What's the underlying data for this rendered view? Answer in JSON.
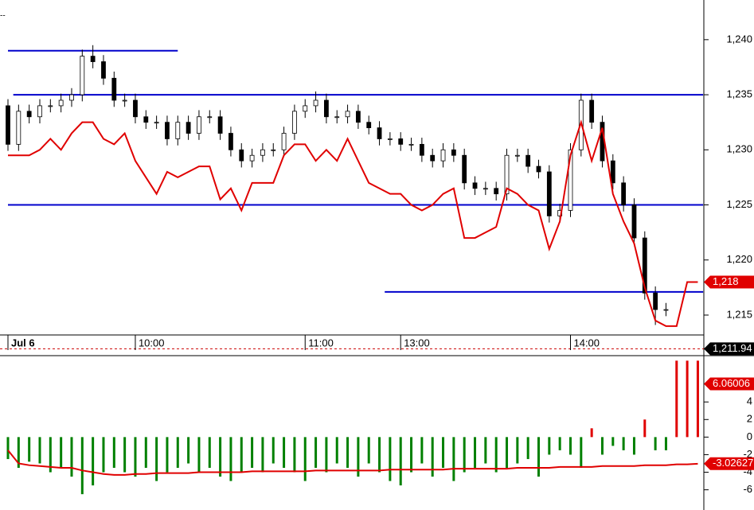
{
  "corner_mark": "--",
  "chart_data": [
    {
      "type": "candlestick",
      "categories": [
        "Jul 6",
        null,
        null,
        null,
        null,
        null,
        null,
        null,
        null,
        null,
        null,
        null,
        "10:00",
        null,
        null,
        null,
        null,
        null,
        null,
        null,
        null,
        null,
        null,
        null,
        null,
        null,
        null,
        null,
        "11:00",
        null,
        null,
        null,
        null,
        null,
        null,
        null,
        null,
        "13:00",
        null,
        null,
        null,
        null,
        null,
        null,
        null,
        null,
        null,
        null,
        null,
        null,
        null,
        null,
        null,
        "14:00",
        null,
        null,
        null,
        null,
        null,
        null,
        null,
        null,
        null,
        null,
        null,
        null
      ],
      "open": [
        1234,
        1230.5,
        1233.5,
        1233,
        1234,
        1234,
        1234.5,
        1235,
        1238.5,
        1238,
        1236.5,
        1234.5,
        1234.5,
        1233,
        1232.5,
        1232.5,
        1231,
        1232.5,
        1231.5,
        1233,
        1233,
        1231.5,
        1230,
        1229,
        1229.5,
        1230,
        1230,
        1231.5,
        1233.5,
        1234,
        1234.5,
        1233,
        1233,
        1233.5,
        1232.5,
        1232,
        1231,
        1231,
        1230.5,
        1230.5,
        1229.5,
        1229,
        1230,
        1229.5,
        1227,
        1226.5,
        1226.5,
        1226,
        1229.5,
        1229.5,
        1228.5,
        1228,
        1224,
        1224.5,
        1230,
        1234.5,
        1232.5,
        1229,
        1227,
        1225,
        1222,
        1217,
        1215.5,
        null,
        null,
        null
      ],
      "high": [
        1234.6,
        1234.1,
        1234.1,
        1234.6,
        1234.6,
        1235.1,
        1235.6,
        1239.1,
        1239.5,
        1238.6,
        1237.1,
        1235.1,
        1235.1,
        1233.6,
        1233.1,
        1233.1,
        1233.1,
        1233.1,
        1233.6,
        1233.6,
        1233.6,
        1232.1,
        1230.6,
        1230.1,
        1230.6,
        1230.6,
        1232.1,
        1234.1,
        1234.6,
        1235.3,
        1235.1,
        1233.6,
        1234.1,
        1234.1,
        1233.1,
        1232.6,
        1231.6,
        1231.6,
        1231.1,
        1231.1,
        1230.1,
        1230.6,
        1230.6,
        1230.1,
        1227.6,
        1227.1,
        1227.1,
        1230.1,
        1230.1,
        1230.1,
        1229.1,
        1228.6,
        1225.1,
        1230.6,
        1235.1,
        1235.1,
        1233.1,
        1229.6,
        1227.6,
        1225.6,
        1222.6,
        1217.6,
        1216.1,
        null,
        null,
        null
      ],
      "low": [
        1229.9,
        1229.9,
        1232.4,
        1232.4,
        1233.4,
        1233.4,
        1233.9,
        1234.4,
        1237.4,
        1235.9,
        1233.9,
        1233.9,
        1232.4,
        1231.9,
        1231.9,
        1230.4,
        1230.4,
        1230.9,
        1230.9,
        1232.4,
        1230.9,
        1229.4,
        1228.4,
        1228.4,
        1228.9,
        1229.4,
        1229.4,
        1230.9,
        1232.9,
        1233.4,
        1232.4,
        1232.4,
        1232.4,
        1231.9,
        1231.4,
        1230.4,
        1230.4,
        1229.9,
        1229.9,
        1228.9,
        1228.4,
        1228.4,
        1228.9,
        1226.4,
        1225.9,
        1225.9,
        1225.4,
        1225.4,
        1228.9,
        1227.9,
        1227.4,
        1223.4,
        1223.4,
        1223.9,
        1229.4,
        1231.9,
        1228.4,
        1226.4,
        1224.4,
        1221.4,
        1216.4,
        1214.1,
        1214.9,
        null,
        null,
        null
      ],
      "close": [
        1230.5,
        1233.5,
        1233,
        1234,
        1234,
        1234.5,
        1235,
        1238.5,
        1238,
        1236.5,
        1234.5,
        1234.5,
        1233,
        1232.5,
        1232.5,
        1231,
        1232.5,
        1231.5,
        1233,
        1233,
        1231.5,
        1230,
        1229,
        1229.5,
        1230,
        1230,
        1231.5,
        1233.5,
        1234,
        1234.5,
        1233,
        1233,
        1233.5,
        1232.5,
        1232,
        1231,
        1231,
        1230.5,
        1230.5,
        1229.5,
        1229,
        1230,
        1229.5,
        1227,
        1226.5,
        1226.5,
        1226,
        1229.5,
        1229.5,
        1228.5,
        1228,
        1224,
        1224.5,
        1230,
        1234.5,
        1232.5,
        1229,
        1227,
        1225,
        1222,
        1217,
        1215.5,
        1215.5,
        null,
        null,
        null
      ],
      "up_color": "#ffffff",
      "down_color": "#000000",
      "line": {
        "color": "#e00000",
        "values": [
          1229.5,
          1229.5,
          1229.5,
          1230,
          1231,
          1230,
          1231.5,
          1232.5,
          1232.5,
          1231,
          1230.5,
          1231.5,
          1229,
          1227.5,
          1226,
          1228,
          1227.5,
          1228,
          1228.5,
          1228.5,
          1225.5,
          1226.5,
          1224.5,
          1227,
          1227,
          1227,
          1229.5,
          1230.5,
          1230.5,
          1229,
          1230,
          1229,
          1231,
          1229,
          1227,
          1226.5,
          1226,
          1226,
          1225,
          1224.5,
          1225,
          1226,
          1226.5,
          1222,
          1222,
          1222.5,
          1223,
          1226.5,
          1226,
          1225,
          1224.5,
          1221,
          1223.5,
          1229.5,
          1232.5,
          1229,
          1232,
          1226,
          1223.5,
          1221.5,
          1217.5,
          1214.5,
          1214,
          1214,
          1218,
          1218
        ]
      },
      "levels": [
        {
          "value": 1239,
          "from": 0,
          "to": 16
        },
        {
          "value": 1235,
          "from": 0.5,
          "to": 65.5
        },
        {
          "value": 1225,
          "from": 0,
          "to": 65.5
        },
        {
          "value": 1217.1,
          "from": 35.5,
          "to": 65.5
        }
      ],
      "level_color": "#0000cc",
      "markers": [
        {
          "value": 1218,
          "label": "1,218",
          "color": "#e00000"
        },
        {
          "value": 1211.94,
          "label": "1,211.94",
          "color": "#000000"
        }
      ],
      "ylim": [
        1211.46,
        1243.6
      ],
      "yticks": [
        {
          "value": 1215,
          "label": "1,215"
        },
        {
          "value": 1220,
          "label": "1,220"
        },
        {
          "value": 1225,
          "label": "1,225"
        },
        {
          "value": 1230,
          "label": "1,230"
        },
        {
          "value": 1235,
          "label": "1,235"
        },
        {
          "value": 1240,
          "label": "1,240"
        }
      ]
    },
    {
      "type": "histogram-oscillator",
      "values": [
        -2.5,
        -3.5,
        -2.8,
        -3,
        -4,
        -3.5,
        -4.5,
        -6.5,
        -5.5,
        -4,
        -3.5,
        -4,
        -4.5,
        -3.5,
        -5,
        -4,
        -3.5,
        -3,
        -4,
        -3.5,
        -4.5,
        -5,
        -4,
        -3.5,
        -4,
        -3,
        -3.5,
        -4,
        -5,
        -3.5,
        -4,
        -3,
        -3.5,
        -4.5,
        -3,
        -4,
        -5,
        -5.5,
        -4,
        -3,
        -4.5,
        -3.5,
        -5,
        -4,
        -3.5,
        -3,
        -4,
        -3.5,
        -3,
        -2.5,
        -4.5,
        -2,
        -1.5,
        -2,
        -3.5,
        1,
        -2,
        -1,
        -1.5,
        -2,
        2,
        -1.5,
        -1.5,
        8.7,
        8.7,
        8.7
      ],
      "up_color": "#e00000",
      "down_color": "#008000",
      "line": {
        "color": "#e00000",
        "values": [
          -1.5,
          -3,
          -3.2,
          -3.3,
          -3.4,
          -3.5,
          -3.5,
          -3.8,
          -4,
          -4.2,
          -4.3,
          -4.3,
          -4.2,
          -4.2,
          -4.1,
          -4.1,
          -4.1,
          -4.1,
          -4,
          -4,
          -4,
          -4,
          -4,
          -3.9,
          -3.9,
          -3.9,
          -3.9,
          -3.9,
          -3.9,
          -3.8,
          -3.8,
          -3.8,
          -3.8,
          -3.8,
          -3.8,
          -3.8,
          -3.7,
          -3.7,
          -3.7,
          -3.7,
          -3.7,
          -3.7,
          -3.6,
          -3.6,
          -3.6,
          -3.6,
          -3.6,
          -3.6,
          -3.5,
          -3.5,
          -3.5,
          -3.5,
          -3.4,
          -3.4,
          -3.4,
          -3.4,
          -3.3,
          -3.3,
          -3.3,
          -3.3,
          -3.2,
          -3.2,
          -3.2,
          -3.1,
          -3.1,
          -3.03
        ]
      },
      "markers": [
        {
          "value": 6.06006,
          "label": "6.06006",
          "color": "#e00000"
        },
        {
          "value": -3.02627,
          "label": "-3.02627",
          "color": "#e00000"
        }
      ],
      "ylim": [
        -8.3,
        9
      ],
      "yticks": [
        -6,
        -4,
        -2,
        0,
        2,
        4
      ]
    }
  ]
}
